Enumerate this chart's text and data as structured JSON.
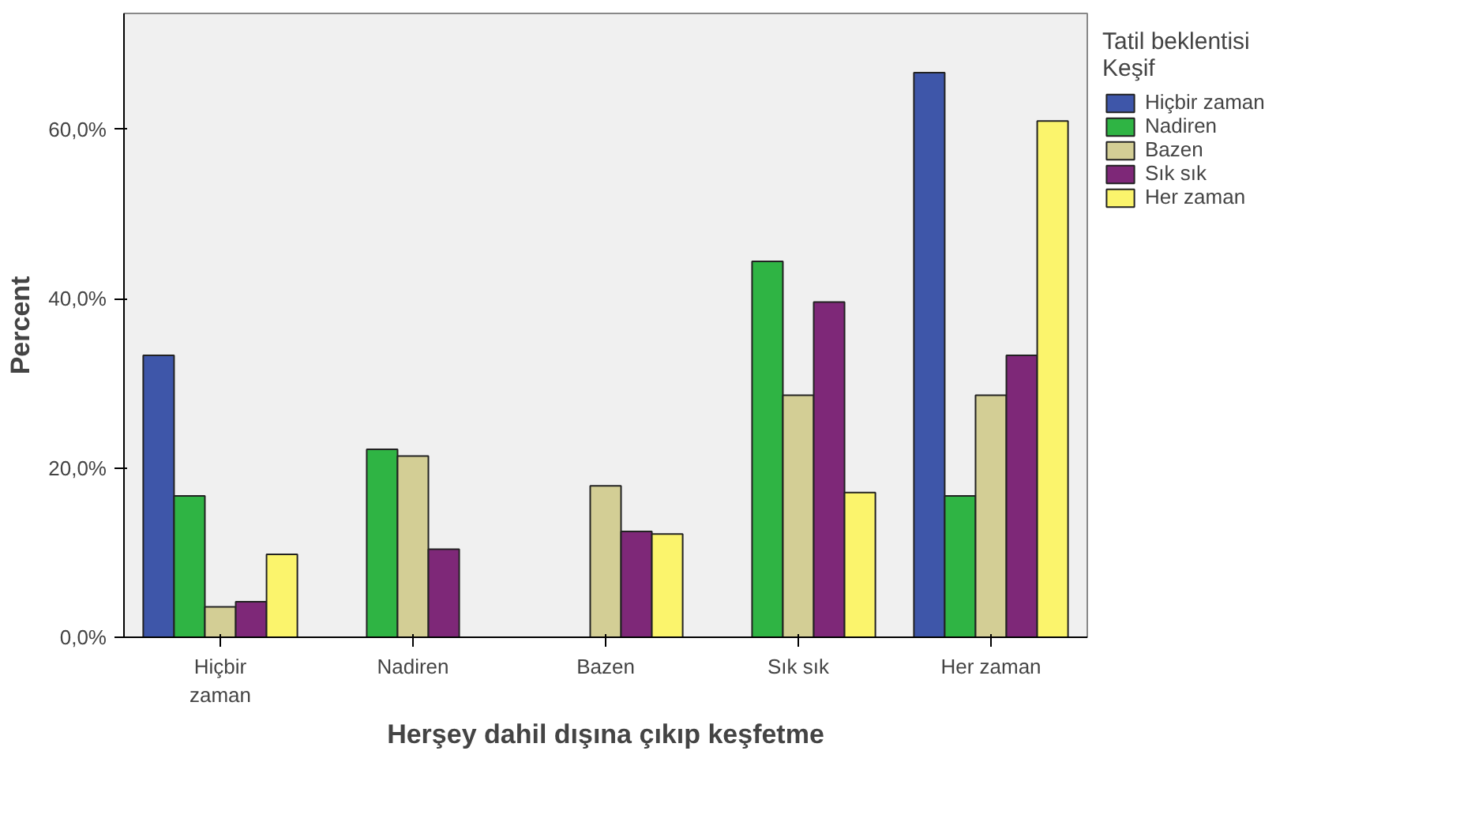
{
  "chart_data": {
    "type": "bar",
    "xlabel": "Herşey dahil dışına çıkıp keşfetme",
    "ylabel": "Percent",
    "legend_title": "Tatil beklentisi\nKeşif",
    "legend": "right",
    "categories": [
      "Hiçbir\nzaman",
      "Nadiren",
      "Bazen",
      "Sık sık",
      "Her zaman"
    ],
    "ylim": [
      0,
      73.7
    ],
    "yticks": [
      {
        "value": 0,
        "label": "0,0%"
      },
      {
        "value": 20,
        "label": "20,0%"
      },
      {
        "value": 40,
        "label": "40,0%"
      },
      {
        "value": 60,
        "label": "60,0%"
      }
    ],
    "grid": false,
    "series": [
      {
        "name": "Hiçbir zaman",
        "color": "#3e56a9",
        "values": [
          33.3,
          null,
          null,
          null,
          66.7
        ]
      },
      {
        "name": "Nadiren",
        "color": "#2fb444",
        "values": [
          16.7,
          22.2,
          null,
          44.4,
          16.7
        ]
      },
      {
        "name": "Bazen",
        "color": "#d3ce95",
        "values": [
          3.6,
          21.4,
          17.9,
          28.6,
          28.6
        ]
      },
      {
        "name": "Sık sık",
        "color": "#7e2878",
        "values": [
          4.2,
          10.4,
          12.5,
          39.6,
          33.3
        ]
      },
      {
        "name": "Her zaman",
        "color": "#fbf46c",
        "values": [
          9.8,
          null,
          12.2,
          17.1,
          61.0
        ]
      }
    ]
  }
}
